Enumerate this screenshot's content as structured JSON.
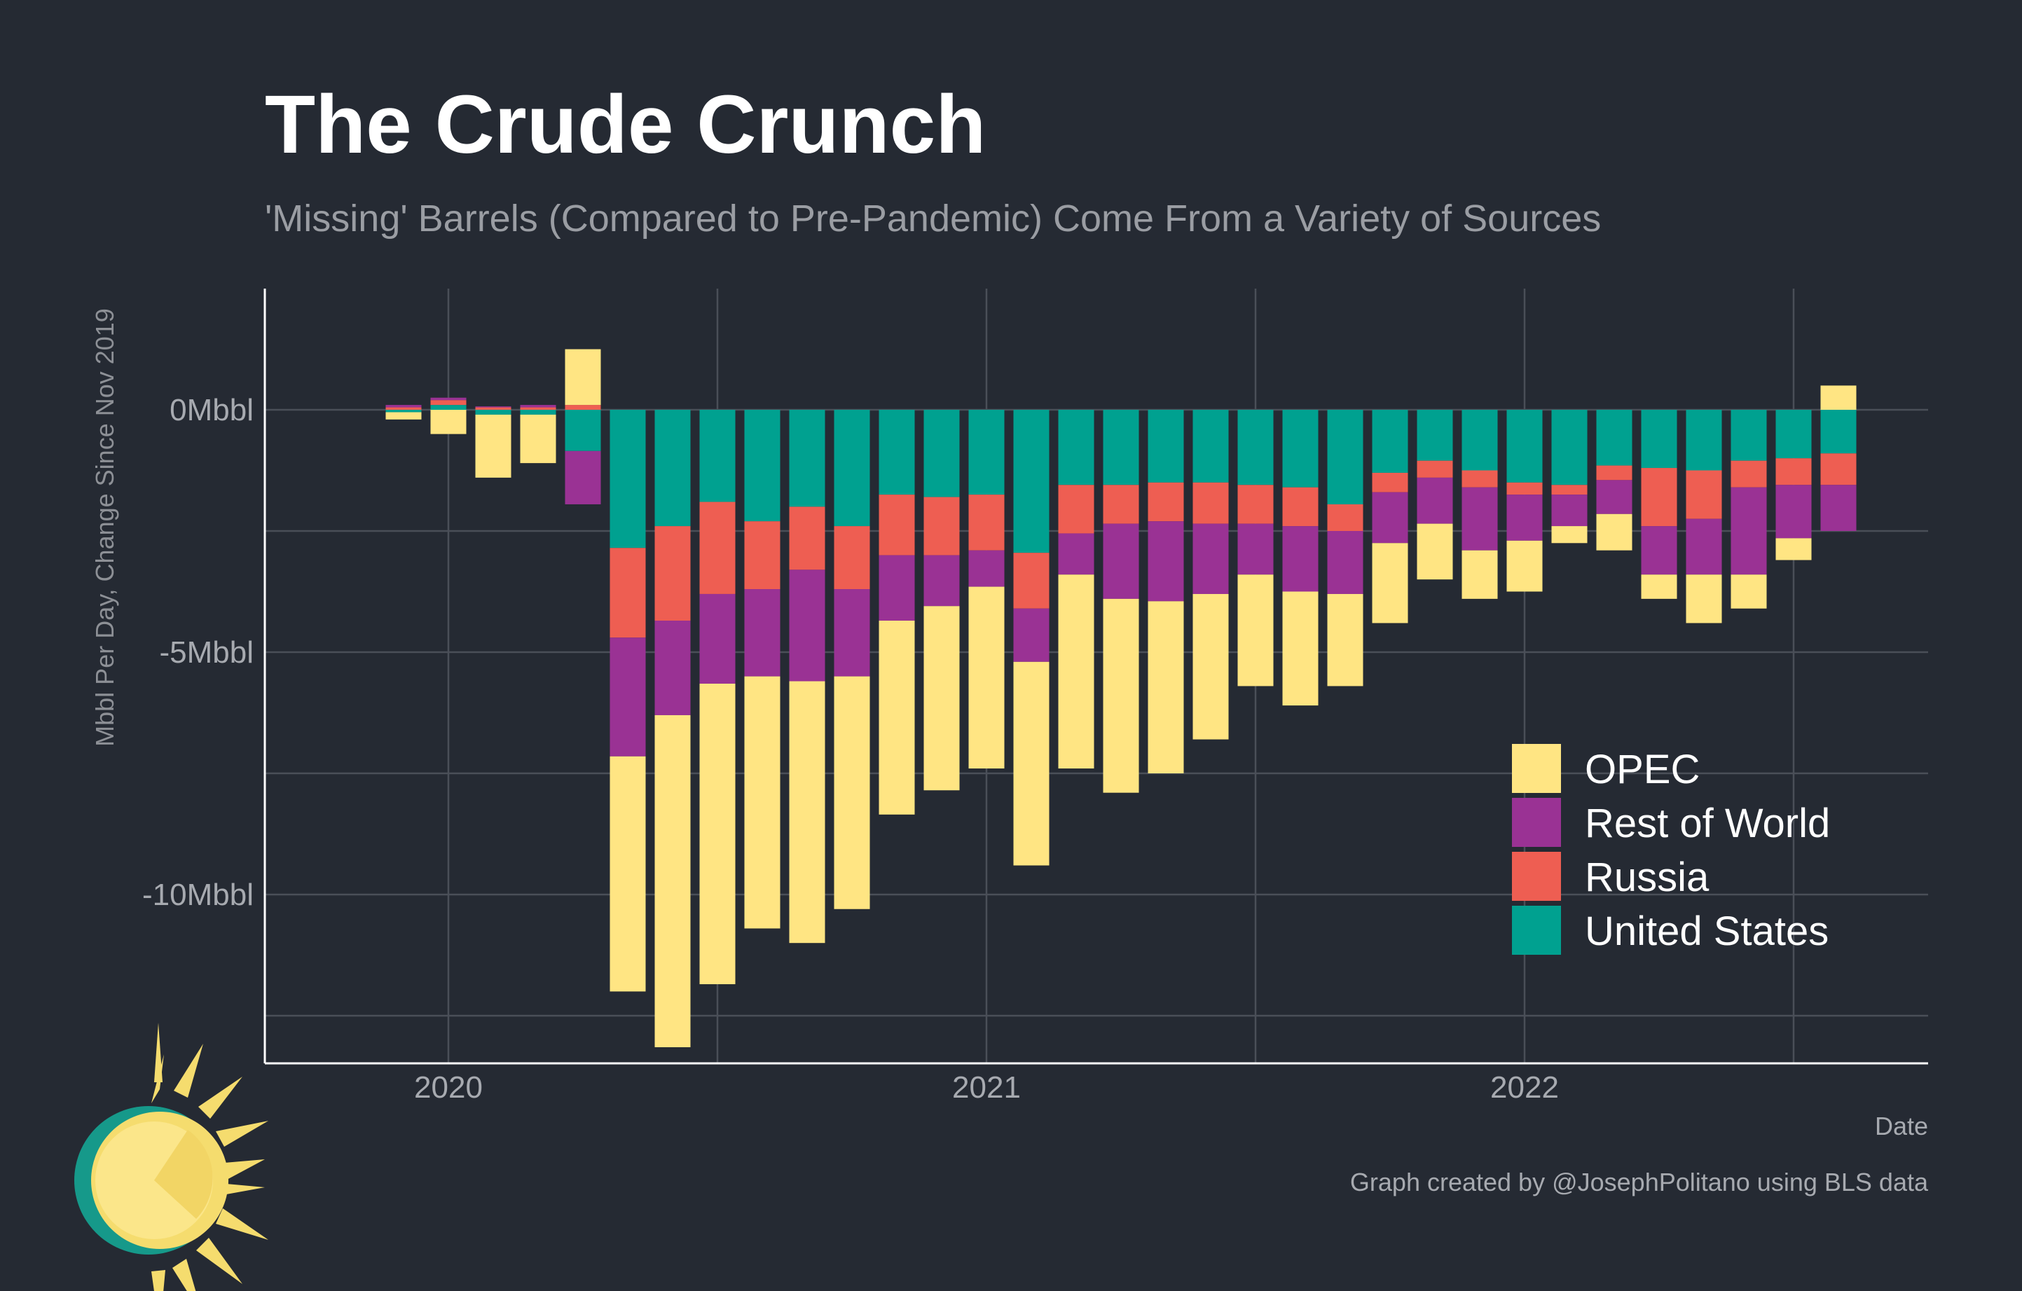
{
  "chart_data": {
    "type": "bar",
    "stacked": true,
    "title": "The Crude Crunch",
    "subtitle": "'Missing' Barrels (Compared to Pre-Pandemic) Come From a Variety of Sources",
    "xlabel": "Date",
    "ylabel": "Mbbl Per Day, Change Since Nov 2019",
    "caption": "Graph created by @JosephPolitano using BLS data",
    "ylim": [
      -13.5,
      2.5
    ],
    "y_ticks": [
      0,
      -5,
      -10
    ],
    "y_tick_labels": [
      "0Mbbl",
      "-5Mbbl",
      "-10Mbbl"
    ],
    "x_tick_labels": [
      "2020",
      "2021",
      "2022"
    ],
    "x_tick_positions": [
      "2020-01",
      "2021-01",
      "2022-01"
    ],
    "legend_position": "bottom-right",
    "grid": true,
    "x": [
      "2019-12",
      "2020-01",
      "2020-02",
      "2020-03",
      "2020-04",
      "2020-05",
      "2020-06",
      "2020-07",
      "2020-08",
      "2020-09",
      "2020-10",
      "2020-11",
      "2020-12",
      "2021-01",
      "2021-02",
      "2021-03",
      "2021-04",
      "2021-05",
      "2021-06",
      "2021-07",
      "2021-08",
      "2021-09",
      "2021-10",
      "2021-11",
      "2021-12",
      "2022-01",
      "2022-02",
      "2022-03",
      "2022-04",
      "2022-05",
      "2022-06",
      "2022-07",
      "2022-08"
    ],
    "series": [
      {
        "name": "United States",
        "color": "#00a190",
        "values": [
          -0.05,
          0.1,
          -0.1,
          -0.1,
          -0.85,
          -2.85,
          -2.4,
          -1.9,
          -2.3,
          -2.0,
          -2.4,
          -1.75,
          -1.8,
          -1.75,
          -2.95,
          -1.55,
          -1.55,
          -1.5,
          -1.5,
          -1.55,
          -1.6,
          -1.95,
          -1.3,
          -1.05,
          -1.25,
          -1.5,
          -1.55,
          -1.15,
          -1.2,
          -1.25,
          -1.05,
          -1.0,
          -0.9
        ]
      },
      {
        "name": "Russia",
        "color": "#ee5e52",
        "values": [
          0.05,
          0.1,
          0.05,
          0.05,
          0.1,
          -1.85,
          -1.95,
          -1.9,
          -1.4,
          -1.3,
          -1.3,
          -1.25,
          -1.2,
          -1.15,
          -1.15,
          -1.0,
          -0.8,
          -0.8,
          -0.85,
          -0.8,
          -0.8,
          -0.55,
          -0.4,
          -0.35,
          -0.35,
          -0.25,
          -0.2,
          -0.3,
          -1.2,
          -1.0,
          -0.55,
          -0.55,
          -0.65
        ]
      },
      {
        "name": "Rest of World",
        "color": "#9a3294",
        "values": [
          0.05,
          0.05,
          0.02,
          0.05,
          -1.1,
          -2.45,
          -1.95,
          -1.85,
          -1.8,
          -2.3,
          -1.8,
          -1.35,
          -1.05,
          -0.75,
          -1.1,
          -0.85,
          -1.55,
          -1.65,
          -1.45,
          -1.05,
          -1.35,
          -1.3,
          -1.05,
          -0.95,
          -1.3,
          -0.95,
          -0.65,
          -0.7,
          -1.0,
          -1.15,
          -1.8,
          -1.1,
          -0.95
        ]
      },
      {
        "name": "OPEC",
        "color": "#ffe583",
        "values": [
          -0.15,
          -0.5,
          -1.3,
          -1.0,
          1.15,
          -4.85,
          -6.85,
          -6.2,
          -5.2,
          -5.4,
          -4.8,
          -4.0,
          -3.8,
          -3.75,
          -4.2,
          -4.0,
          -4.0,
          -3.55,
          -3.0,
          -2.3,
          -2.35,
          -1.9,
          -1.65,
          -1.15,
          -1.0,
          -1.05,
          -0.35,
          -0.75,
          -0.5,
          -1.0,
          -0.7,
          -0.45,
          0.5
        ]
      }
    ]
  }
}
